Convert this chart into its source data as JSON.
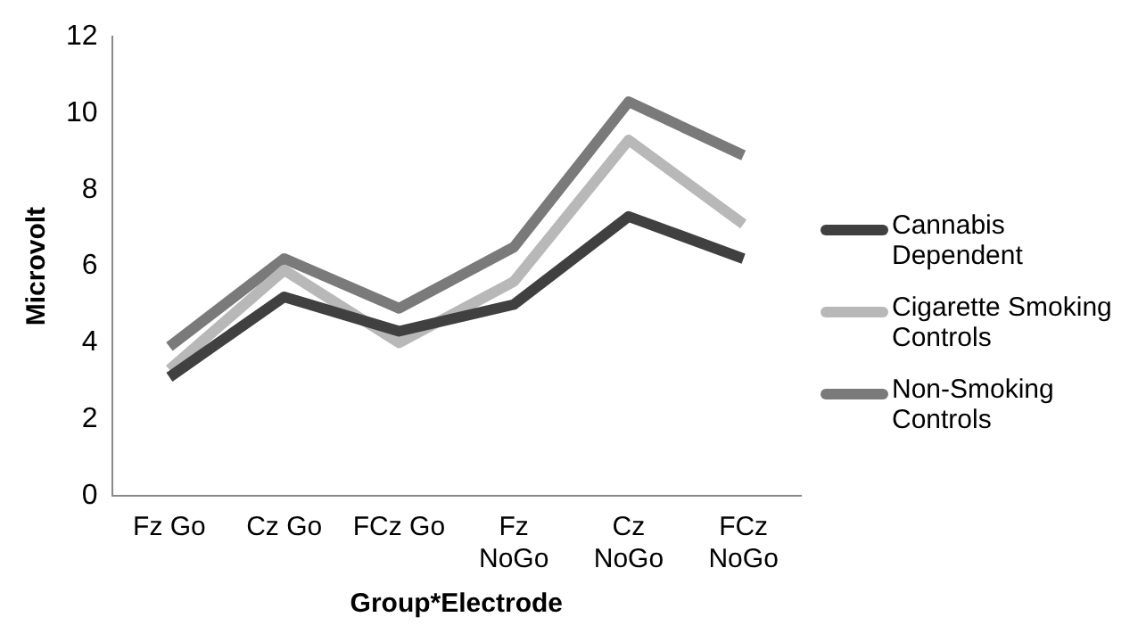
{
  "chart_data": {
    "type": "line",
    "xlabel": "Group*Electrode",
    "ylabel": "Microvolt",
    "categories": [
      "Fz Go",
      "Cz Go",
      "FCz Go",
      "Fz NoGo",
      "Cz NoGo",
      "FCz NoGo"
    ],
    "series": [
      {
        "name": "Cannabis Dependent",
        "color": "#404040",
        "values": [
          3.1,
          5.2,
          4.3,
          5.0,
          7.3,
          6.2
        ]
      },
      {
        "name": "Cigarette Smoking Controls",
        "color": "#b8b8b8",
        "values": [
          3.3,
          5.9,
          4.0,
          5.6,
          9.3,
          7.1
        ]
      },
      {
        "name": "Non-Smoking Controls",
        "color": "#7a7a7a",
        "values": [
          3.9,
          6.2,
          4.9,
          6.5,
          10.3,
          8.9
        ]
      }
    ],
    "ylim": [
      0,
      12
    ],
    "yticks": [
      0,
      2,
      4,
      6,
      8,
      10,
      12
    ],
    "grid": false,
    "legend": "right",
    "marker": "none",
    "line_style": "solid"
  }
}
